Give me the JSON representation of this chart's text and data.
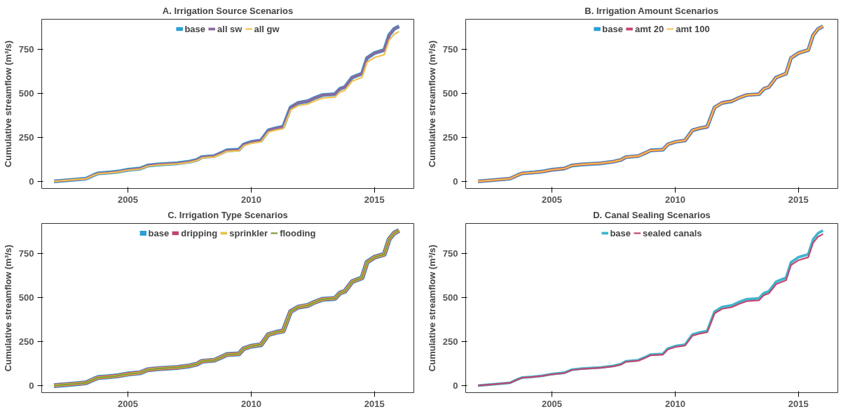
{
  "chart_data": [
    {
      "type": "line",
      "title": "A. Irrigation Source Scenarios",
      "ylabel": "Cumulative streamflow (m³/s)",
      "x": [
        2002.0,
        2002.5,
        2003.0,
        2003.3,
        2003.6,
        2003.8,
        2004.2,
        2004.6,
        2005.0,
        2005.5,
        2005.8,
        2006.2,
        2007.0,
        2007.5,
        2007.8,
        2008.0,
        2008.5,
        2008.8,
        2009.0,
        2009.5,
        2009.7,
        2010.0,
        2010.4,
        2010.7,
        2011.0,
        2011.3,
        2011.6,
        2011.9,
        2012.3,
        2012.6,
        2012.9,
        2013.4,
        2013.6,
        2013.8,
        2014.1,
        2014.5,
        2014.7,
        2015.0,
        2015.4,
        2015.6,
        2015.8,
        2016.0
      ],
      "series": [
        {
          "name": "base",
          "color": "#2b9fd4",
          "values": [
            0,
            6,
            12,
            16,
            35,
            46,
            50,
            56,
            66,
            73,
            90,
            96,
            103,
            112,
            122,
            138,
            144,
            162,
            176,
            180,
            210,
            224,
            232,
            290,
            302,
            310,
            420,
            445,
            455,
            475,
            490,
            495,
            525,
            535,
            590,
            612,
            700,
            728,
            745,
            830,
            865,
            880
          ]
        },
        {
          "name": "all sw",
          "color": "#8a6a9e",
          "values": [
            0,
            6,
            12,
            16,
            35,
            46,
            50,
            56,
            66,
            73,
            90,
            96,
            103,
            112,
            122,
            138,
            144,
            162,
            176,
            180,
            210,
            224,
            232,
            290,
            302,
            310,
            420,
            445,
            455,
            475,
            490,
            495,
            525,
            535,
            590,
            612,
            700,
            728,
            745,
            830,
            865,
            880
          ]
        },
        {
          "name": "all gw",
          "color": "#f2c14e",
          "values": [
            0,
            6,
            12,
            15,
            34,
            44,
            48,
            54,
            64,
            70,
            87,
            93,
            99,
            108,
            118,
            133,
            139,
            156,
            170,
            174,
            203,
            216,
            224,
            280,
            291,
            299,
            405,
            429,
            439,
            458,
            473,
            478,
            507,
            516,
            569,
            591,
            676,
            703,
            719,
            801,
            835,
            850
          ]
        }
      ],
      "xlim": [
        2001.5,
        2016.6
      ],
      "ylim": [
        -40,
        920
      ],
      "xticks": [
        2005,
        2010,
        2015
      ],
      "yticks": [
        0,
        250,
        500,
        750
      ],
      "grid": false,
      "legend": "top"
    },
    {
      "type": "line",
      "title": "B. Irrigation Amount Scenarios",
      "ylabel": "Cumulative streamflow (m³/s)",
      "x": [
        2002.0,
        2002.5,
        2003.0,
        2003.3,
        2003.6,
        2003.8,
        2004.2,
        2004.6,
        2005.0,
        2005.5,
        2005.8,
        2006.2,
        2007.0,
        2007.5,
        2007.8,
        2008.0,
        2008.5,
        2008.8,
        2009.0,
        2009.5,
        2009.7,
        2010.0,
        2010.4,
        2010.7,
        2011.0,
        2011.3,
        2011.6,
        2011.9,
        2012.3,
        2012.6,
        2012.9,
        2013.4,
        2013.6,
        2013.8,
        2014.1,
        2014.5,
        2014.7,
        2015.0,
        2015.4,
        2015.6,
        2015.8,
        2016.0
      ],
      "series": [
        {
          "name": "base",
          "color": "#2b9fd4",
          "values": [
            0,
            6,
            12,
            16,
            35,
            46,
            50,
            56,
            66,
            73,
            90,
            96,
            103,
            112,
            122,
            138,
            144,
            162,
            176,
            180,
            210,
            224,
            232,
            290,
            302,
            310,
            420,
            445,
            455,
            475,
            490,
            495,
            525,
            535,
            590,
            612,
            700,
            728,
            745,
            830,
            865,
            880
          ]
        },
        {
          "name": "amt 20",
          "color": "#c2466e",
          "values": [
            0,
            6,
            12,
            16,
            35,
            46,
            50,
            56,
            66,
            73,
            90,
            96,
            103,
            112,
            122,
            138,
            144,
            162,
            176,
            180,
            210,
            224,
            232,
            290,
            302,
            310,
            420,
            445,
            455,
            475,
            490,
            495,
            525,
            535,
            590,
            612,
            700,
            728,
            745,
            830,
            865,
            880
          ]
        },
        {
          "name": "amt 100",
          "color": "#f2c14e",
          "values": [
            0,
            6,
            12,
            16,
            35,
            46,
            50,
            56,
            66,
            73,
            90,
            96,
            103,
            112,
            122,
            138,
            144,
            162,
            176,
            180,
            210,
            224,
            232,
            290,
            302,
            310,
            420,
            445,
            455,
            475,
            490,
            495,
            525,
            535,
            590,
            612,
            700,
            728,
            745,
            830,
            865,
            880
          ]
        }
      ],
      "xlim": [
        2001.5,
        2016.6
      ],
      "ylim": [
        -40,
        920
      ],
      "xticks": [
        2005,
        2010,
        2015
      ],
      "yticks": [
        0,
        250,
        500,
        750
      ],
      "grid": false,
      "legend": "top"
    },
    {
      "type": "line",
      "title": "C. Irrigation Type Scenarios",
      "ylabel": "Cumulative streamflow (m³/s)",
      "x": [
        2002.0,
        2002.5,
        2003.0,
        2003.3,
        2003.6,
        2003.8,
        2004.2,
        2004.6,
        2005.0,
        2005.5,
        2005.8,
        2006.2,
        2007.0,
        2007.5,
        2007.8,
        2008.0,
        2008.5,
        2008.8,
        2009.0,
        2009.5,
        2009.7,
        2010.0,
        2010.4,
        2010.7,
        2011.0,
        2011.3,
        2011.6,
        2011.9,
        2012.3,
        2012.6,
        2012.9,
        2013.4,
        2013.6,
        2013.8,
        2014.1,
        2014.5,
        2014.7,
        2015.0,
        2015.4,
        2015.6,
        2015.8,
        2016.0
      ],
      "series": [
        {
          "name": "base",
          "color": "#2b9fd4",
          "values": [
            0,
            6,
            12,
            16,
            35,
            46,
            50,
            56,
            66,
            73,
            90,
            96,
            103,
            112,
            122,
            138,
            144,
            162,
            176,
            180,
            210,
            224,
            232,
            290,
            302,
            310,
            420,
            445,
            455,
            475,
            490,
            495,
            525,
            535,
            590,
            612,
            700,
            728,
            745,
            830,
            865,
            880
          ]
        },
        {
          "name": "dripping",
          "color": "#c2466e",
          "values": [
            0,
            6,
            12,
            16,
            35,
            46,
            50,
            56,
            66,
            73,
            90,
            96,
            103,
            112,
            122,
            138,
            144,
            162,
            176,
            180,
            210,
            224,
            232,
            290,
            302,
            310,
            420,
            445,
            455,
            475,
            490,
            495,
            525,
            535,
            590,
            612,
            700,
            728,
            745,
            830,
            865,
            880
          ]
        },
        {
          "name": "sprinkler",
          "color": "#e8c24a",
          "values": [
            0,
            6,
            12,
            16,
            35,
            46,
            50,
            56,
            66,
            73,
            90,
            96,
            103,
            112,
            122,
            138,
            144,
            162,
            176,
            180,
            210,
            224,
            232,
            290,
            302,
            310,
            420,
            445,
            455,
            475,
            490,
            495,
            525,
            535,
            590,
            612,
            700,
            728,
            745,
            830,
            865,
            880
          ]
        },
        {
          "name": "flooding",
          "color": "#7f9a3c",
          "values": [
            0,
            6,
            12,
            16,
            35,
            46,
            50,
            56,
            66,
            73,
            90,
            96,
            103,
            112,
            122,
            138,
            144,
            162,
            176,
            180,
            210,
            224,
            232,
            290,
            302,
            310,
            420,
            445,
            455,
            475,
            490,
            495,
            525,
            535,
            590,
            612,
            700,
            728,
            745,
            830,
            865,
            880
          ]
        }
      ],
      "xlim": [
        2001.5,
        2016.6
      ],
      "ylim": [
        -40,
        920
      ],
      "xticks": [
        2005,
        2010,
        2015
      ],
      "yticks": [
        0,
        250,
        500,
        750
      ],
      "grid": false,
      "legend": "top"
    },
    {
      "type": "line",
      "title": "D. Canal Sealing Scenarios",
      "ylabel": "Cumulative streamflow (m³/s)",
      "x": [
        2002.0,
        2002.5,
        2003.0,
        2003.3,
        2003.6,
        2003.8,
        2004.2,
        2004.6,
        2005.0,
        2005.5,
        2005.8,
        2006.2,
        2007.0,
        2007.5,
        2007.8,
        2008.0,
        2008.5,
        2008.8,
        2009.0,
        2009.5,
        2009.7,
        2010.0,
        2010.4,
        2010.7,
        2011.0,
        2011.3,
        2011.6,
        2011.9,
        2012.3,
        2012.6,
        2012.9,
        2013.4,
        2013.6,
        2013.8,
        2014.1,
        2014.5,
        2014.7,
        2015.0,
        2015.4,
        2015.6,
        2015.8,
        2016.0
      ],
      "series": [
        {
          "name": "base",
          "color": "#3fb6cf",
          "values": [
            0,
            6,
            12,
            16,
            35,
            46,
            50,
            56,
            66,
            73,
            90,
            96,
            103,
            112,
            122,
            138,
            144,
            162,
            176,
            180,
            210,
            224,
            232,
            290,
            302,
            310,
            420,
            445,
            455,
            475,
            490,
            495,
            525,
            535,
            590,
            612,
            700,
            728,
            745,
            830,
            865,
            880
          ]
        },
        {
          "name": "sealed canals",
          "color": "#c2466e",
          "values": [
            0,
            6,
            12,
            16,
            34,
            45,
            49,
            55,
            64,
            71,
            88,
            94,
            101,
            109,
            119,
            135,
            141,
            158,
            172,
            176,
            205,
            219,
            227,
            283,
            295,
            303,
            410,
            435,
            445,
            464,
            479,
            484,
            513,
            523,
            576,
            598,
            684,
            711,
            728,
            811,
            845,
            860
          ]
        }
      ],
      "xlim": [
        2001.5,
        2016.6
      ],
      "ylim": [
        -40,
        920
      ],
      "xticks": [
        2005,
        2010,
        2015
      ],
      "yticks": [
        0,
        250,
        500,
        750
      ],
      "grid": false,
      "legend": "top"
    }
  ]
}
